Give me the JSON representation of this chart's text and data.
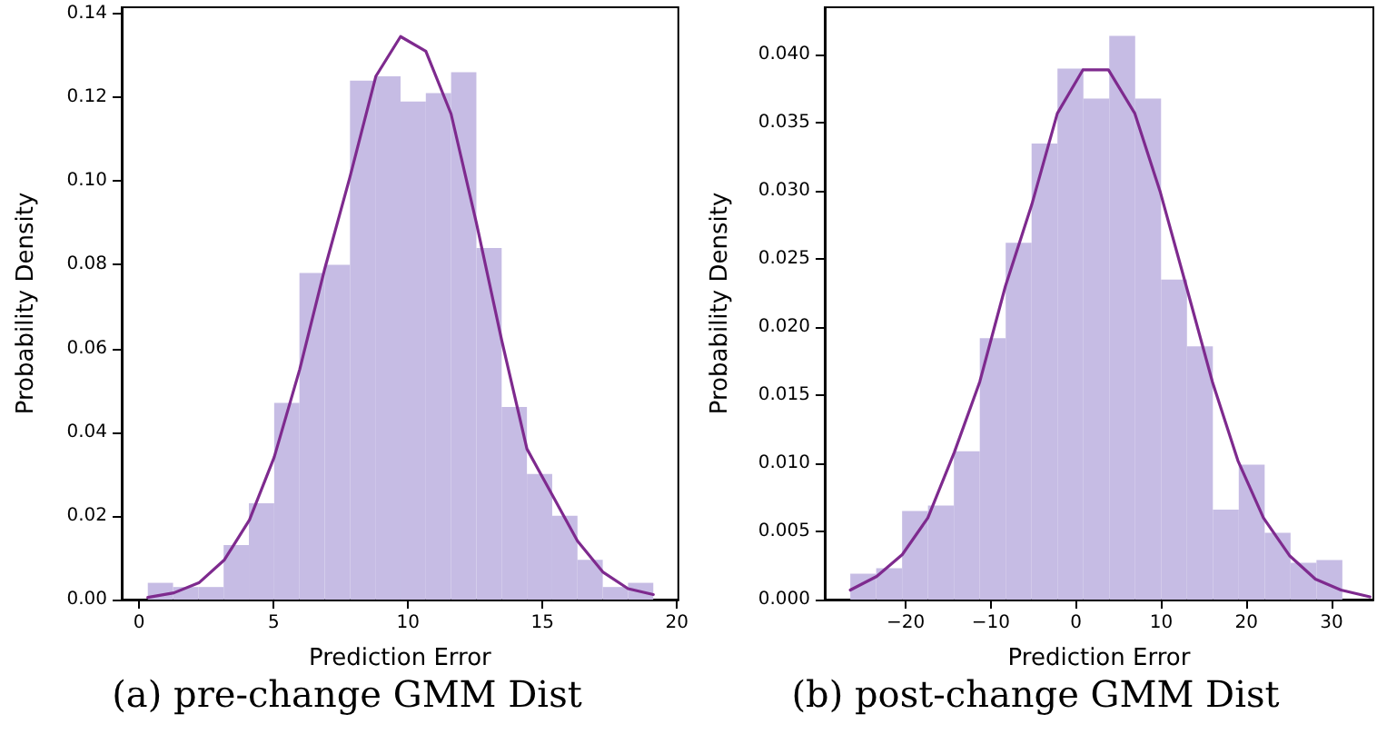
{
  "chart_data": [
    {
      "type": "histogram",
      "xlabel": "Prediction Error",
      "ylabel": "Probability Density",
      "annotations": [
        "(a) pre-change GMM Dist"
      ],
      "grid": false,
      "xlim": [
        -0.65,
        20.05
      ],
      "ylim": [
        0,
        0.1415
      ],
      "xticks": [
        0,
        5,
        10,
        15,
        20
      ],
      "yticks": [
        {
          "value": 0,
          "label": "0.00"
        },
        {
          "value": 0.02,
          "label": "0.02"
        },
        {
          "value": 0.04,
          "label": "0.04"
        },
        {
          "value": 0.06,
          "label": "0.06"
        },
        {
          "value": 0.08,
          "label": "0.08"
        },
        {
          "value": 0.1,
          "label": "0.10"
        },
        {
          "value": 0.12,
          "label": "0.12"
        },
        {
          "value": 0.14,
          "label": "0.14"
        }
      ],
      "series": [
        {
          "color": "#c6bce4",
          "bins": [
            0.32,
            1.26,
            2.2,
            3.14,
            4.08,
            5.02,
            5.96,
            6.9,
            7.84,
            8.78,
            9.72,
            10.66,
            11.6,
            12.54,
            13.48,
            14.42,
            15.36,
            16.3,
            17.24,
            18.18,
            19.12
          ],
          "values": [
            0.004,
            0.003,
            0.003,
            0.013,
            0.023,
            0.047,
            0.078,
            0.08,
            0.124,
            0.125,
            0.119,
            0.121,
            0.126,
            0.084,
            0.046,
            0.03,
            0.02,
            0.0095,
            0.003,
            0.004
          ]
        },
        {
          "type": "line",
          "color": "#7e2a8e",
          "x": [
            0.32,
            1.29,
            2.22,
            3.17,
            4.1,
            5.02,
            5.97,
            6.9,
            7.84,
            8.8,
            9.72,
            10.66,
            11.6,
            12.54,
            13.48,
            14.42,
            15.36,
            16.3,
            17.24,
            18.18,
            19.12
          ],
          "values": [
            0.0005,
            0.0016,
            0.004,
            0.0095,
            0.019,
            0.034,
            0.055,
            0.079,
            0.101,
            0.125,
            0.1345,
            0.131,
            0.116,
            0.09,
            0.062,
            0.036,
            0.025,
            0.014,
            0.0066,
            0.0026,
            0.0012
          ]
        }
      ]
    },
    {
      "type": "histogram",
      "xlabel": "Prediction Error",
      "ylabel": "Probability Density",
      "annotations": [
        "(b) post-change GMM Dist"
      ],
      "grid": false,
      "xlim": [
        -29.5,
        34.9
      ],
      "ylim": [
        0,
        0.0435
      ],
      "xticks": [
        {
          "value": -20,
          "label": "−20"
        },
        {
          "value": -10,
          "label": "−10"
        },
        0,
        10,
        20,
        30
      ],
      "yticks": [
        {
          "value": 0,
          "label": "0.000"
        },
        {
          "value": 0.005,
          "label": "0.005"
        },
        {
          "value": 0.01,
          "label": "0.010"
        },
        {
          "value": 0.015,
          "label": "0.015"
        },
        {
          "value": 0.02,
          "label": "0.020"
        },
        {
          "value": 0.025,
          "label": "0.025"
        },
        {
          "value": 0.03,
          "label": "0.030"
        },
        {
          "value": 0.035,
          "label": "0.035"
        },
        {
          "value": 0.04,
          "label": "0.040"
        }
      ],
      "series": [
        {
          "color": "#c6bce4",
          "bins": [
            -26.5,
            -23.46,
            -20.42,
            -17.38,
            -14.34,
            -11.3,
            -8.26,
            -5.22,
            -2.18,
            0.86,
            3.9,
            6.94,
            9.98,
            13.02,
            16.06,
            19.1,
            22.14,
            25.18,
            28.22,
            31.26
          ],
          "values": [
            0.0019,
            0.0023,
            0.0065,
            0.0069,
            0.0109,
            0.0192,
            0.0262,
            0.0335,
            0.039,
            0.0368,
            0.0414,
            0.0368,
            0.0235,
            0.0186,
            0.0066,
            0.0099,
            0.0049,
            0.0027,
            0.0029
          ]
        },
        {
          "type": "line",
          "color": "#7e2a8e",
          "x": [
            -26.5,
            -23.4,
            -20.4,
            -17.4,
            -14.3,
            -11.3,
            -8.3,
            -5.2,
            -2.2,
            0.8,
            3.8,
            6.9,
            9.9,
            12.9,
            16.0,
            19.0,
            22.0,
            25.1,
            28.1,
            31.1,
            34.5
          ],
          "values": [
            0.0007,
            0.0017,
            0.0033,
            0.006,
            0.0108,
            0.016,
            0.023,
            0.029,
            0.0357,
            0.0389,
            0.0389,
            0.0357,
            0.0299,
            0.0231,
            0.016,
            0.0102,
            0.006,
            0.0032,
            0.0015,
            0.0007,
            0.0002
          ]
        }
      ]
    }
  ]
}
